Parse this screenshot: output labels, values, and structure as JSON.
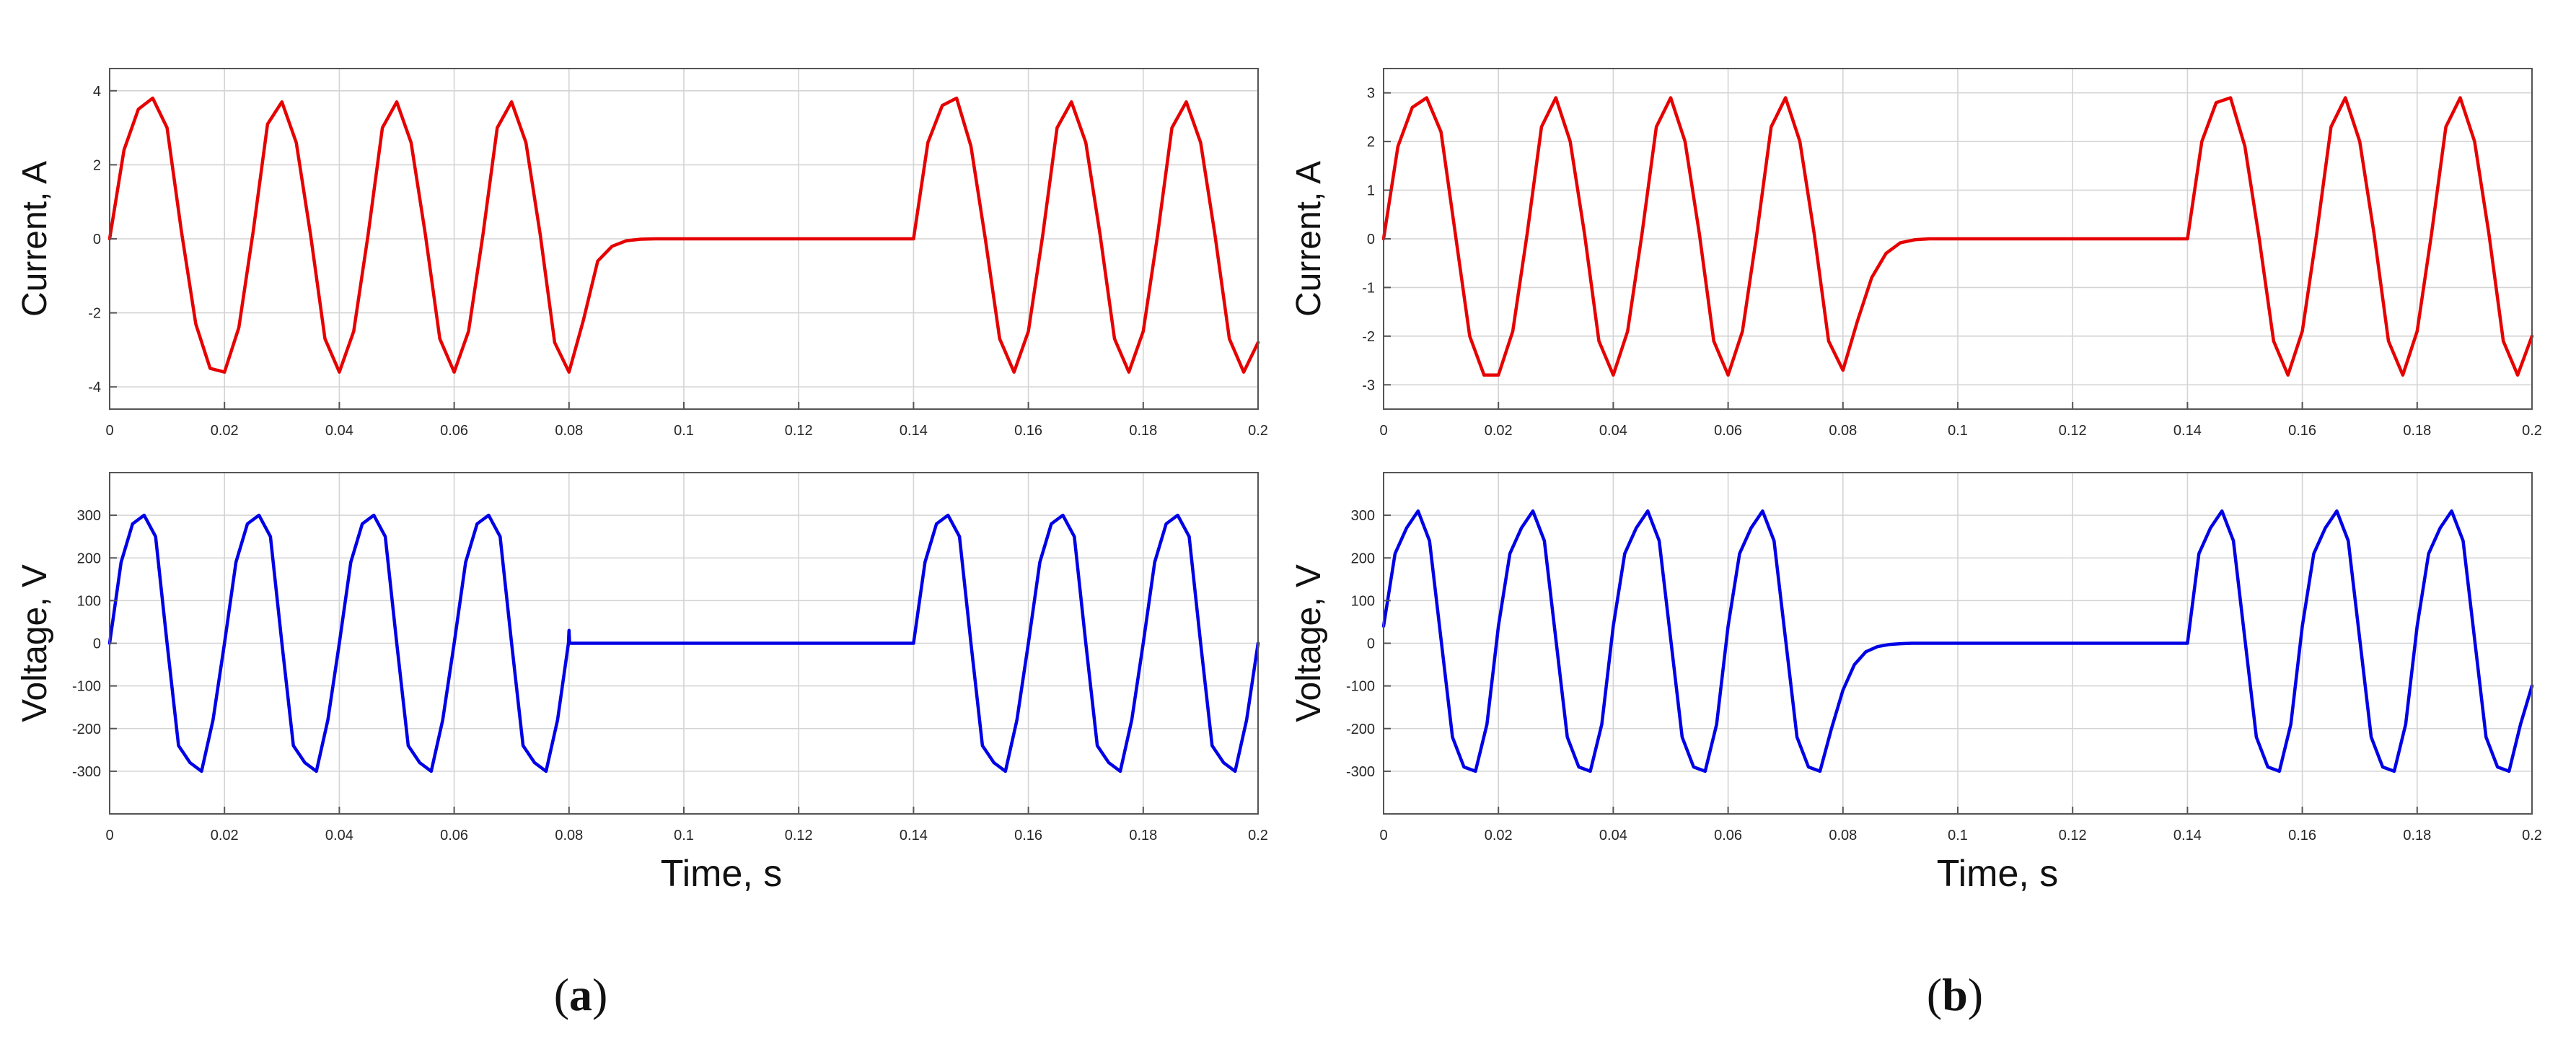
{
  "panels": [
    {
      "letter": "a",
      "open": "(",
      "close": ")",
      "xlabel": "Time, s"
    },
    {
      "letter": "b",
      "open": "(",
      "close": ")",
      "xlabel": "Time, s"
    }
  ],
  "chart_data": [
    {
      "type": "line",
      "panel": "a",
      "plot": "current",
      "title": "",
      "xlabel": "",
      "ylabel": "Current, A",
      "xlim": [
        0,
        0.2
      ],
      "ylim": [
        -4.6,
        4.6
      ],
      "xticks": [
        0,
        0.02,
        0.04,
        0.06,
        0.08,
        0.1,
        0.12,
        0.14,
        0.16,
        0.18,
        0.2
      ],
      "xticklabels": [
        "0",
        "0.02",
        "0.04",
        "0.06",
        "0.08",
        "0.1",
        "0.12",
        "0.14",
        "0.16",
        "0.18",
        "0.2"
      ],
      "yticks": [
        -4,
        -2,
        0,
        2,
        4
      ],
      "yticklabels": [
        "-4",
        "-2",
        "0",
        "2",
        "4"
      ],
      "grid": true,
      "color": "#e60000",
      "series": [
        {
          "x": [
            0,
            0.0025,
            0.005,
            0.0075,
            0.01,
            0.0125,
            0.015,
            0.0175,
            0.02,
            0.0225,
            0.025,
            0.0275,
            0.03,
            0.0325,
            0.035,
            0.0375,
            0.04,
            0.0425,
            0.045,
            0.0475,
            0.05,
            0.0525,
            0.055,
            0.0575,
            0.06,
            0.0625,
            0.065,
            0.0675,
            0.07,
            0.0725,
            0.075,
            0.0775,
            0.08,
            0.0825,
            0.085,
            0.0875,
            0.09,
            0.0925,
            0.095,
            0.0975,
            0.1,
            0.14,
            0.1425,
            0.145,
            0.1475,
            0.15,
            0.1525,
            0.155,
            0.1575,
            0.16,
            0.1625,
            0.165,
            0.1675,
            0.17,
            0.1725,
            0.175,
            0.1775,
            0.18,
            0.1825,
            0.185,
            0.1875,
            0.19,
            0.1925,
            0.195,
            0.1975,
            0.2
          ],
          "y": [
            0,
            2.4,
            3.5,
            3.8,
            3,
            0.2,
            -2.3,
            -3.5,
            -3.6,
            -2.4,
            0.2,
            3.1,
            3.7,
            2.6,
            0.1,
            -2.7,
            -3.6,
            -2.5,
            0.1,
            3,
            3.7,
            2.6,
            0.1,
            -2.7,
            -3.6,
            -2.5,
            0.1,
            3,
            3.7,
            2.6,
            0.1,
            -2.8,
            -3.6,
            -2.2,
            -0.6,
            -0.2,
            -0.05,
            -0.01,
            0,
            0,
            0,
            0,
            2.6,
            3.6,
            3.8,
            2.5,
            0,
            -2.7,
            -3.6,
            -2.5,
            0.1,
            3,
            3.7,
            2.6,
            0.1,
            -2.7,
            -3.6,
            -2.5,
            0.1,
            3,
            3.7,
            2.6,
            0.1,
            -2.7,
            -3.6,
            -2.8
          ]
        }
      ]
    },
    {
      "type": "line",
      "panel": "a",
      "plot": "voltage",
      "title": "",
      "xlabel": "",
      "ylabel": "Voltage, V",
      "xlim": [
        0,
        0.2
      ],
      "ylim": [
        -400,
        400
      ],
      "xticks": [
        0,
        0.02,
        0.04,
        0.06,
        0.08,
        0.1,
        0.12,
        0.14,
        0.16,
        0.18,
        0.2
      ],
      "xticklabels": [
        "0",
        "0.02",
        "0.04",
        "0.06",
        "0.08",
        "0.1",
        "0.12",
        "0.14",
        "0.16",
        "0.18",
        "0.2"
      ],
      "yticks": [
        -300,
        -200,
        -100,
        0,
        100,
        200,
        300
      ],
      "yticklabels": [
        "-300",
        "-200",
        "-100",
        "0",
        "100",
        "200",
        "300"
      ],
      "grid": true,
      "color": "#0000e6",
      "series": [
        {
          "x": [
            0,
            0.002,
            0.004,
            0.006,
            0.008,
            0.01,
            0.012,
            0.014,
            0.016,
            0.018,
            0.02,
            0.022,
            0.024,
            0.026,
            0.028,
            0.03,
            0.032,
            0.034,
            0.036,
            0.038,
            0.04,
            0.042,
            0.044,
            0.046,
            0.048,
            0.05,
            0.052,
            0.054,
            0.056,
            0.058,
            0.06,
            0.062,
            0.064,
            0.066,
            0.068,
            0.07,
            0.072,
            0.074,
            0.076,
            0.078,
            0.0799,
            0.08,
            0.0801,
            0.14,
            0.142,
            0.144,
            0.146,
            0.148,
            0.15,
            0.152,
            0.154,
            0.156,
            0.158,
            0.16,
            0.162,
            0.164,
            0.166,
            0.168,
            0.17,
            0.172,
            0.174,
            0.176,
            0.178,
            0.18,
            0.182,
            0.184,
            0.186,
            0.188,
            0.19,
            0.192,
            0.194,
            0.196,
            0.198,
            0.2
          ],
          "y": [
            0,
            190,
            280,
            300,
            250,
            0,
            -240,
            -280,
            -300,
            -180,
            0,
            190,
            280,
            300,
            250,
            0,
            -240,
            -280,
            -300,
            -180,
            0,
            190,
            280,
            300,
            250,
            0,
            -240,
            -280,
            -300,
            -180,
            0,
            190,
            280,
            300,
            250,
            0,
            -240,
            -280,
            -300,
            -180,
            0,
            30,
            0,
            0,
            190,
            280,
            300,
            250,
            0,
            -240,
            -280,
            -300,
            -180,
            0,
            190,
            280,
            300,
            250,
            0,
            -240,
            -280,
            -300,
            -180,
            0,
            190,
            280,
            300,
            250,
            0,
            -240,
            -280,
            -300,
            -180,
            0
          ]
        }
      ]
    },
    {
      "type": "line",
      "panel": "b",
      "plot": "current",
      "title": "",
      "xlabel": "",
      "ylabel": "Current, A",
      "xlim": [
        0,
        0.2
      ],
      "ylim": [
        -3.5,
        3.5
      ],
      "xticks": [
        0,
        0.02,
        0.04,
        0.06,
        0.08,
        0.1,
        0.12,
        0.14,
        0.16,
        0.18,
        0.2
      ],
      "xticklabels": [
        "0",
        "0.02",
        "0.04",
        "0.06",
        "0.08",
        "0.1",
        "0.12",
        "0.14",
        "0.16",
        "0.18",
        "0.2"
      ],
      "yticks": [
        -3,
        -2,
        -1,
        0,
        1,
        2,
        3
      ],
      "yticklabels": [
        "-3",
        "-2",
        "-1",
        "0",
        "1",
        "2",
        "3"
      ],
      "grid": true,
      "color": "#e60000",
      "series": [
        {
          "x": [
            0,
            0.0025,
            0.005,
            0.0075,
            0.01,
            0.0125,
            0.015,
            0.0175,
            0.02,
            0.0225,
            0.025,
            0.0275,
            0.03,
            0.0325,
            0.035,
            0.0375,
            0.04,
            0.0425,
            0.045,
            0.0475,
            0.05,
            0.0525,
            0.055,
            0.0575,
            0.06,
            0.0625,
            0.065,
            0.0675,
            0.07,
            0.0725,
            0.075,
            0.0775,
            0.08,
            0.0825,
            0.085,
            0.0875,
            0.09,
            0.0925,
            0.095,
            0.0975,
            0.1,
            0.14,
            0.1425,
            0.145,
            0.1475,
            0.15,
            0.1525,
            0.155,
            0.1575,
            0.16,
            0.1625,
            0.165,
            0.1675,
            0.17,
            0.1725,
            0.175,
            0.1775,
            0.18,
            0.1825,
            0.185,
            0.1875,
            0.19,
            0.1925,
            0.195,
            0.1975,
            0.2
          ],
          "y": [
            0,
            1.9,
            2.7,
            2.9,
            2.2,
            0.1,
            -2,
            -2.8,
            -2.8,
            -1.9,
            0.1,
            2.3,
            2.9,
            2,
            0.1,
            -2.1,
            -2.8,
            -1.9,
            0.1,
            2.3,
            2.9,
            2,
            0.1,
            -2.1,
            -2.8,
            -1.9,
            0.1,
            2.3,
            2.9,
            2,
            0.1,
            -2.1,
            -2.7,
            -1.7,
            -0.8,
            -0.3,
            -0.08,
            -0.02,
            0,
            0,
            0,
            0,
            2,
            2.8,
            2.9,
            1.9,
            0,
            -2.1,
            -2.8,
            -1.9,
            0.1,
            2.3,
            2.9,
            2,
            0.1,
            -2.1,
            -2.8,
            -1.9,
            0.1,
            2.3,
            2.9,
            2,
            0.1,
            -2.1,
            -2.8,
            -2
          ]
        }
      ]
    },
    {
      "type": "line",
      "panel": "b",
      "plot": "voltage",
      "title": "",
      "xlabel": "",
      "ylabel": "Voltage, V",
      "xlim": [
        0,
        0.2
      ],
      "ylim": [
        -400,
        400
      ],
      "xticks": [
        0,
        0.02,
        0.04,
        0.06,
        0.08,
        0.1,
        0.12,
        0.14,
        0.16,
        0.18,
        0.2
      ],
      "xticklabels": [
        "0",
        "0.02",
        "0.04",
        "0.06",
        "0.08",
        "0.1",
        "0.12",
        "0.14",
        "0.16",
        "0.18",
        "0.2"
      ],
      "yticks": [
        -300,
        -200,
        -100,
        0,
        100,
        200,
        300
      ],
      "yticklabels": [
        "-300",
        "-200",
        "-100",
        "0",
        "100",
        "200",
        "300"
      ],
      "grid": true,
      "color": "#0000e6",
      "series": [
        {
          "x": [
            0,
            0.002,
            0.004,
            0.006,
            0.008,
            0.01,
            0.012,
            0.014,
            0.016,
            0.018,
            0.02,
            0.022,
            0.024,
            0.026,
            0.028,
            0.03,
            0.032,
            0.034,
            0.036,
            0.038,
            0.04,
            0.042,
            0.044,
            0.046,
            0.048,
            0.05,
            0.052,
            0.054,
            0.056,
            0.058,
            0.06,
            0.062,
            0.064,
            0.066,
            0.068,
            0.07,
            0.072,
            0.074,
            0.076,
            0.078,
            0.08,
            0.082,
            0.084,
            0.086,
            0.088,
            0.09,
            0.092,
            0.094,
            0.14,
            0.142,
            0.144,
            0.146,
            0.148,
            0.15,
            0.152,
            0.154,
            0.156,
            0.158,
            0.16,
            0.162,
            0.164,
            0.166,
            0.168,
            0.17,
            0.172,
            0.174,
            0.176,
            0.178,
            0.18,
            0.182,
            0.184,
            0.186,
            0.188,
            0.19,
            0.192,
            0.194,
            0.196,
            0.198,
            0.2
          ],
          "y": [
            40,
            210,
            270,
            310,
            240,
            10,
            -220,
            -290,
            -300,
            -190,
            40,
            210,
            270,
            310,
            240,
            10,
            -220,
            -290,
            -300,
            -190,
            40,
            210,
            270,
            310,
            240,
            10,
            -220,
            -290,
            -300,
            -190,
            40,
            210,
            270,
            310,
            240,
            10,
            -220,
            -290,
            -300,
            -200,
            -110,
            -50,
            -20,
            -8,
            -3,
            -1,
            0,
            0,
            0,
            210,
            270,
            310,
            240,
            10,
            -220,
            -290,
            -300,
            -190,
            40,
            210,
            270,
            310,
            240,
            10,
            -220,
            -290,
            -300,
            -190,
            40,
            210,
            270,
            310,
            240,
            10,
            -220,
            -290,
            -300,
            -190,
            -100
          ]
        }
      ]
    }
  ]
}
